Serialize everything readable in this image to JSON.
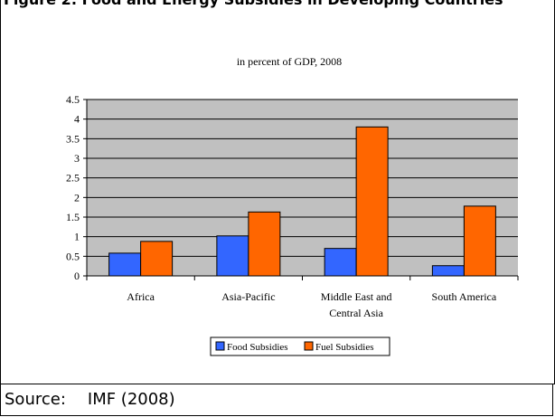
{
  "caption": "Figure 2: Food and Energy Subsidies in Developing Countries",
  "source": {
    "label": "Source:",
    "text": "IMF (2008)"
  },
  "colors": {
    "food": "#3366ff",
    "fuel": "#ff6600",
    "plot_bg": "#c0c0c0"
  },
  "chart_data": {
    "type": "bar",
    "title": "in percent of GDP, 2008",
    "categories": [
      [
        "Africa"
      ],
      [
        "Asia-Pacific"
      ],
      [
        "Middle East and",
        "Central Asia"
      ],
      [
        "South America"
      ]
    ],
    "series": [
      {
        "name": "Food Subsidies",
        "values": [
          0.58,
          1.02,
          0.7,
          0.26
        ]
      },
      {
        "name": "Fuel Subsidies",
        "values": [
          0.88,
          1.63,
          3.8,
          1.78
        ]
      }
    ],
    "ylim": [
      0,
      4.5
    ],
    "yticks": [
      "0",
      "0.5",
      "1",
      "1.5",
      "2",
      "2.5",
      "3",
      "3.5",
      "4",
      "4.5"
    ],
    "grid": true,
    "legend": "bottom"
  }
}
